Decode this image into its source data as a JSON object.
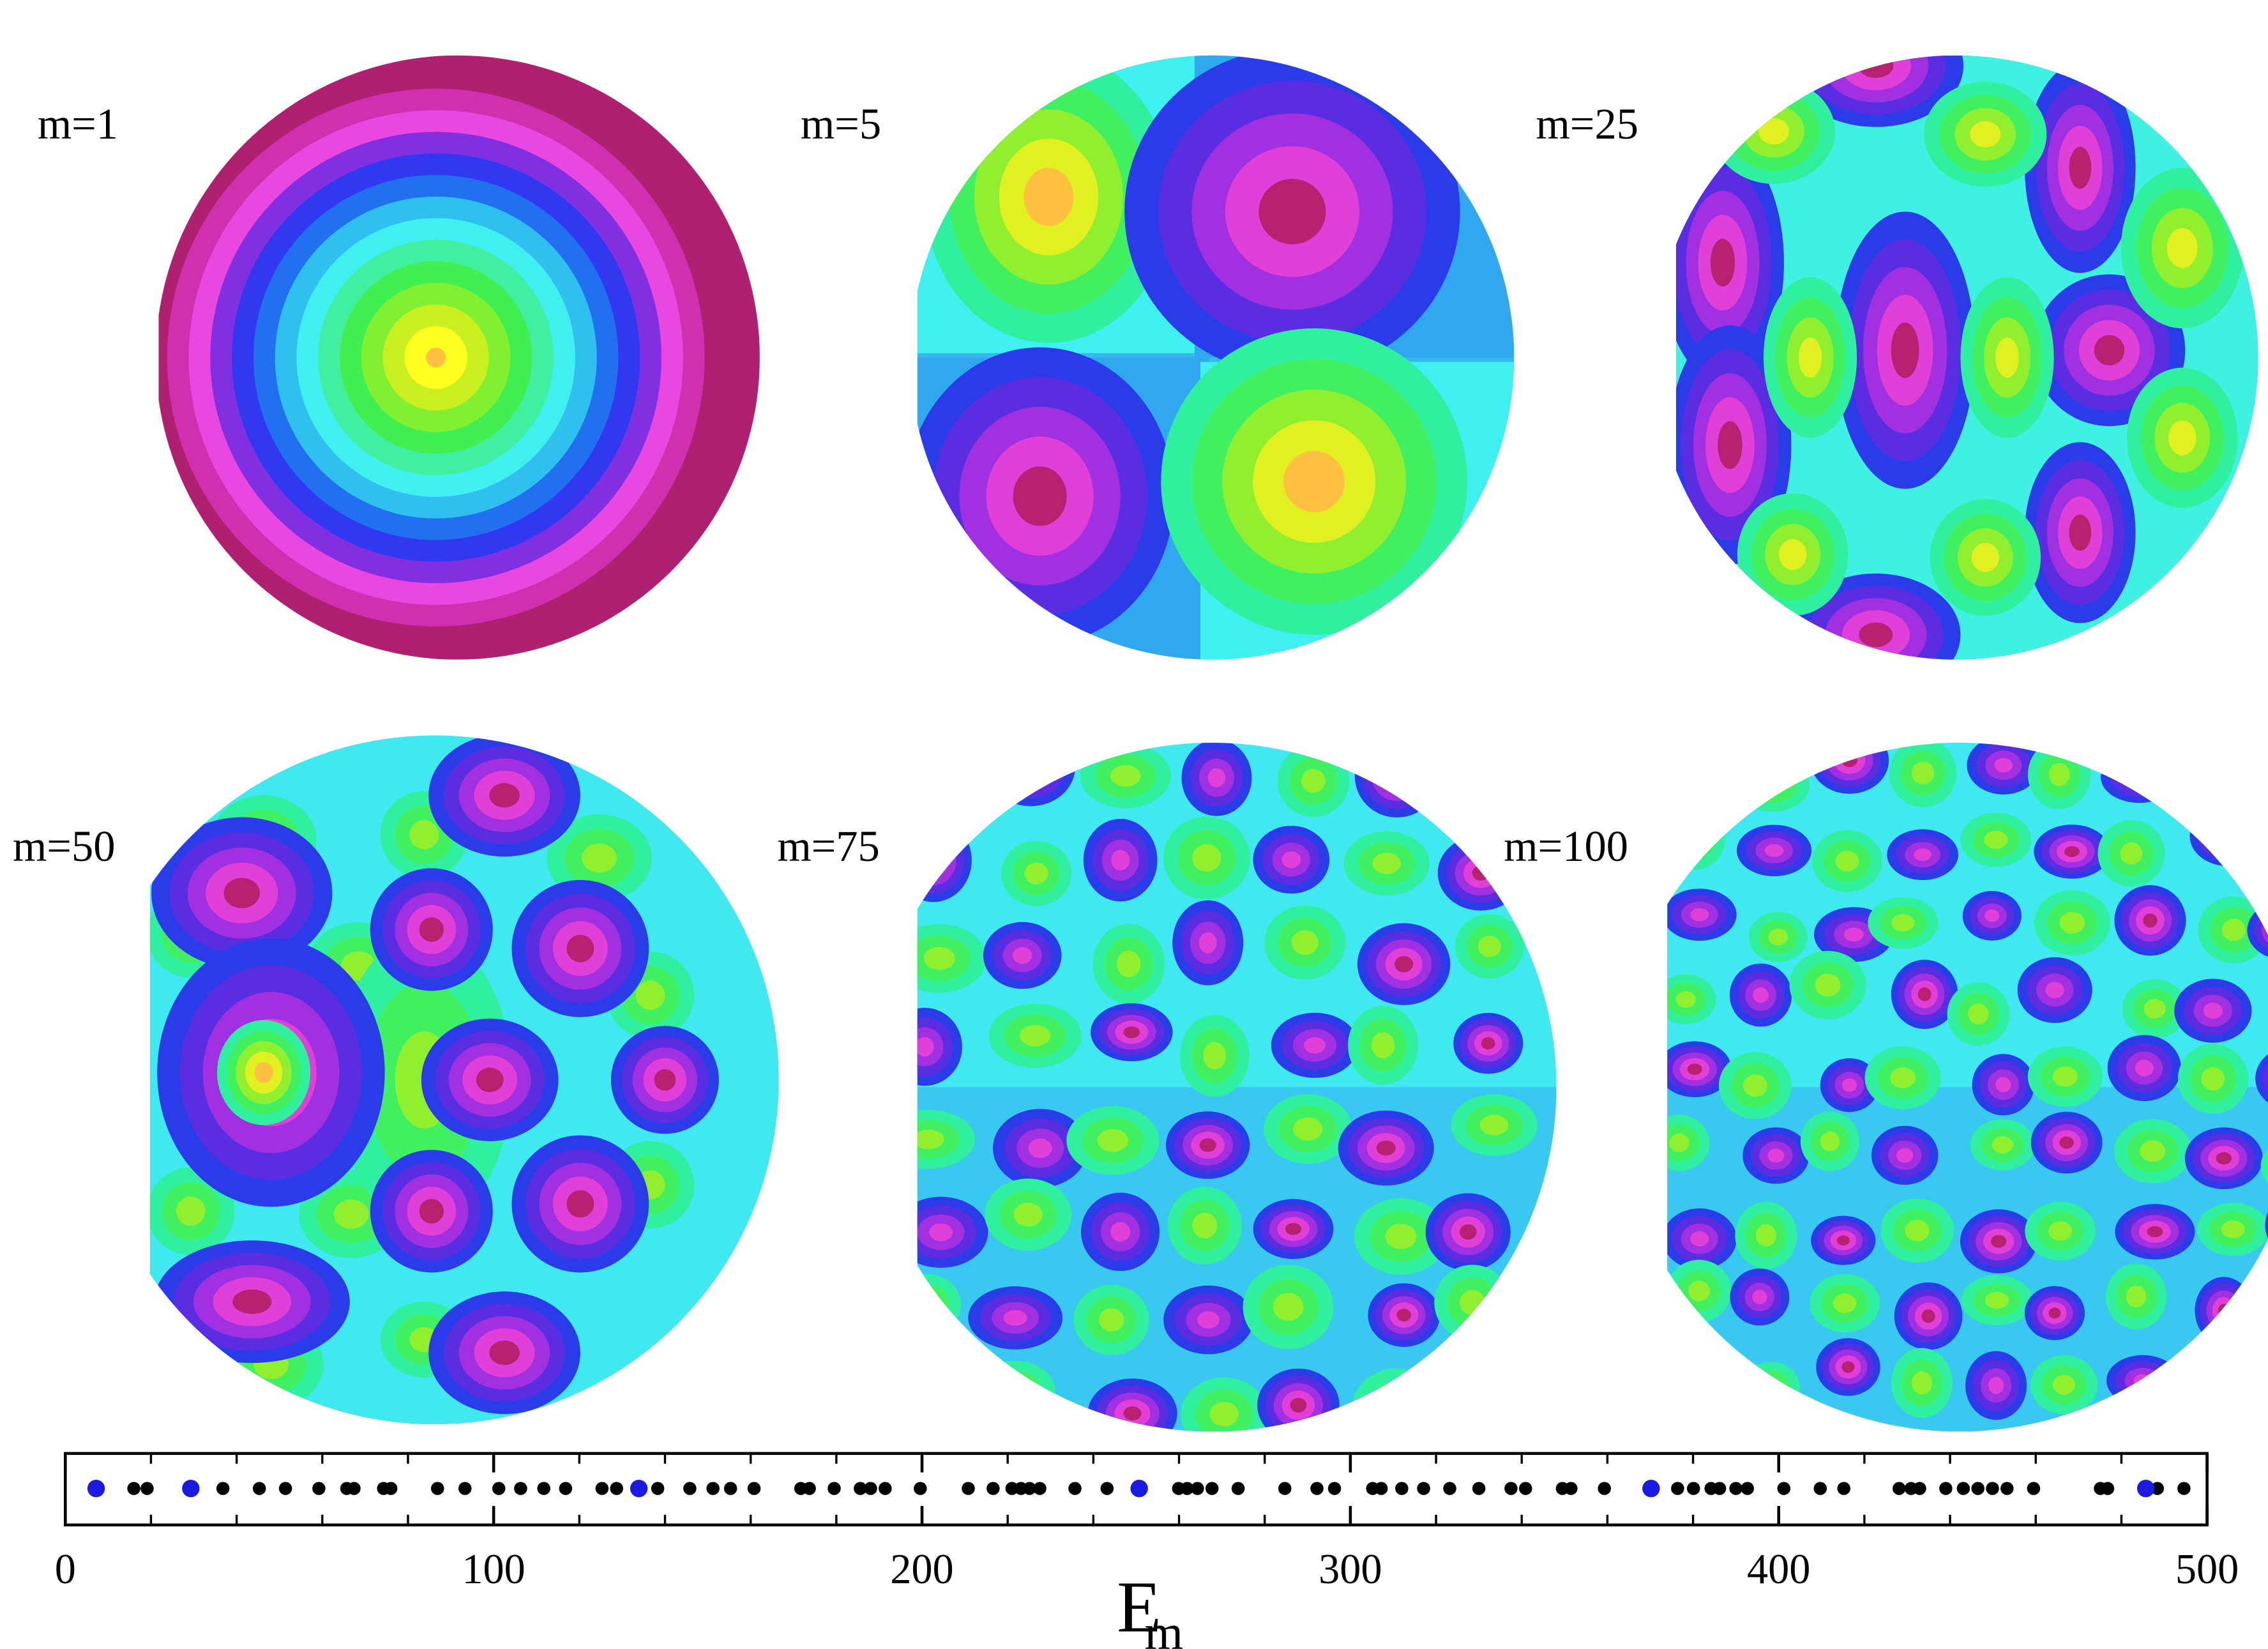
{
  "chart_data": {
    "type": "strip",
    "panel_labels": [
      "m=1",
      "m=5",
      "m=25",
      "m=50",
      "m=75",
      "m=100"
    ],
    "xlabel": "E",
    "xlabel_subscript": "m",
    "xlim": [
      0,
      500
    ],
    "xticks": [
      0,
      100,
      200,
      300,
      400,
      500
    ],
    "minor_tick_step": 20,
    "series": [
      {
        "color": "#000000",
        "values": [
          16.0,
          19.1,
          36.8,
          45.3,
          51.4,
          59.2,
          65.7,
          67.4,
          74.3,
          76.0,
          86.9,
          93.3,
          101.2,
          106.3,
          111.7,
          116.8,
          125.3,
          128.7,
          138.3,
          145.8,
          151.2,
          155.3,
          160.8,
          171.7,
          173.7,
          179.5,
          185.6,
          188.0,
          191.4,
          199.6,
          210.8,
          216.6,
          221.0,
          223.1,
          225.1,
          227.5,
          235.7,
          243.2,
          259.9,
          261.9,
          264.3,
          267.7,
          273.8,
          284.7,
          292.2,
          296.3,
          305.2,
          307.2,
          312.0,
          317.1,
          323.2,
          330.0,
          337.5,
          340.9,
          349.5,
          351.5,
          359.3,
          376.4,
          380.1,
          384.2,
          386.2,
          390.0,
          392.7,
          401.2,
          409.7,
          415.2,
          428.1,
          430.9,
          432.9,
          439.0,
          443.1,
          446.5,
          449.9,
          453.3,
          459.5,
          475.1,
          476.8,
          488.4,
          494.6
        ]
      },
      {
        "color": "#1a1ae0",
        "values": [
          7.2,
          29.3,
          133.9,
          250.7,
          370.2,
          485.7
        ]
      }
    ]
  }
}
